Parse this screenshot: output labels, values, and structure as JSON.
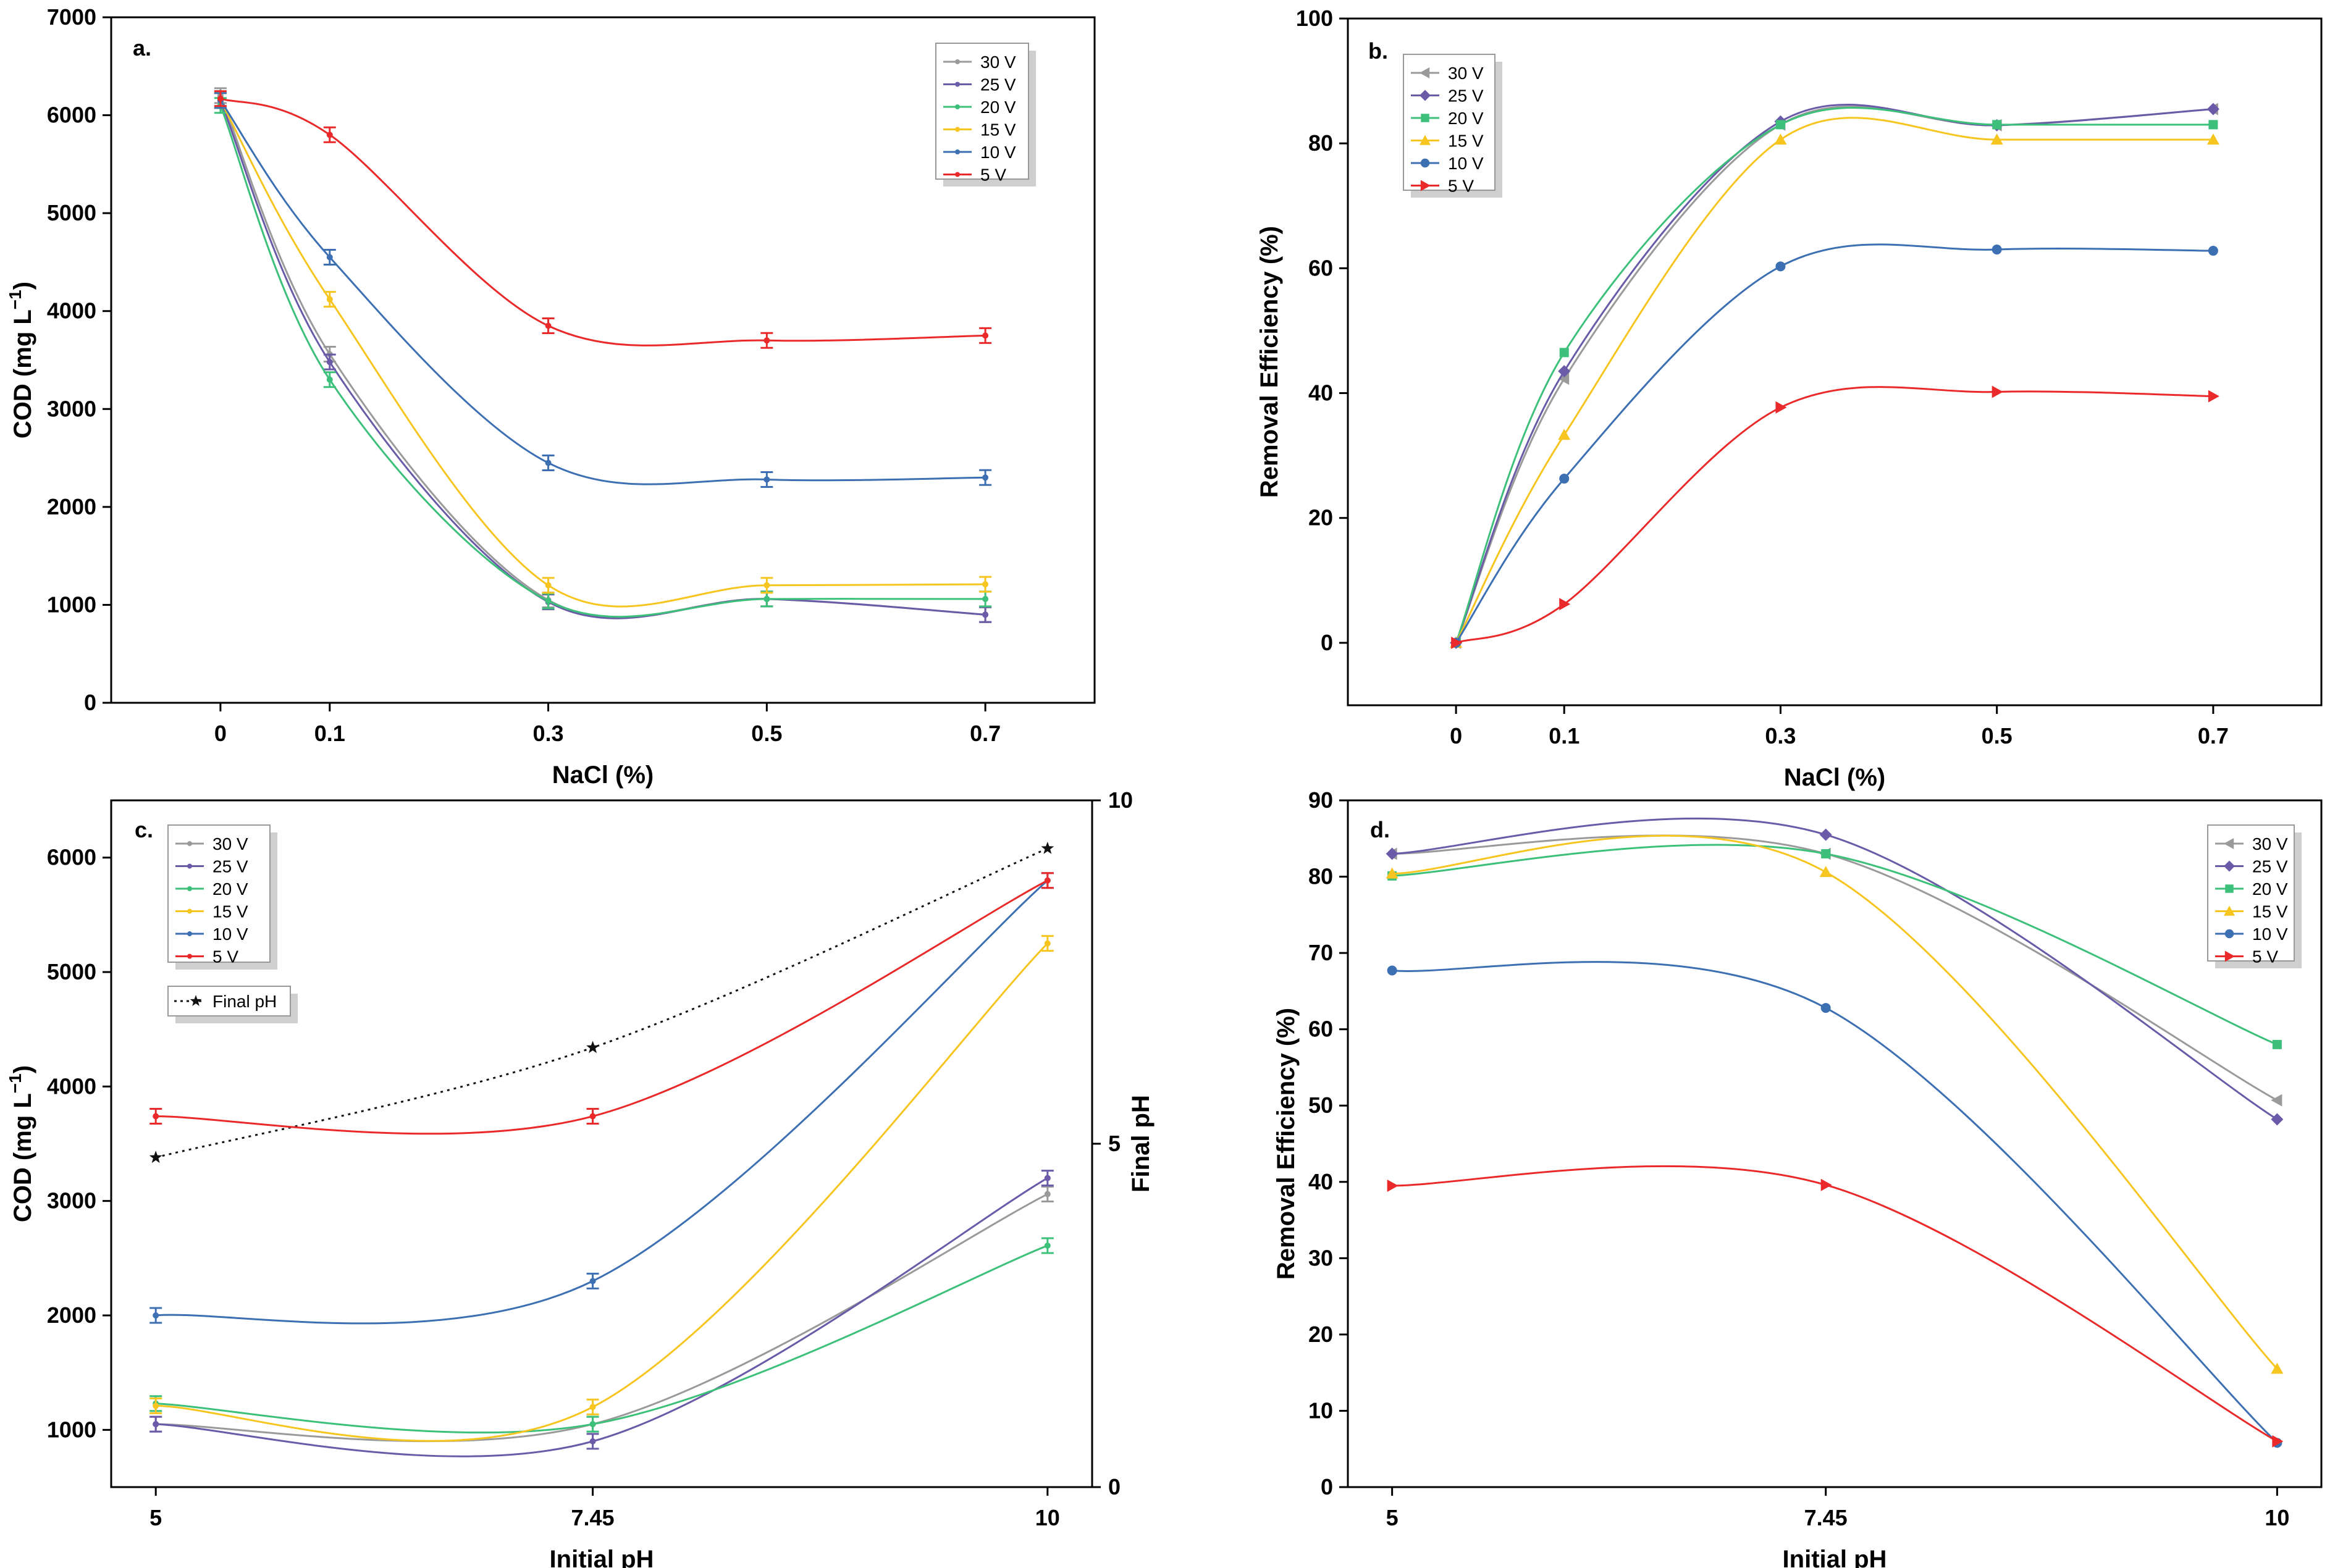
{
  "colors": {
    "30 V": "#9a9a9a",
    "25 V": "#6a5aa8",
    "20 V": "#3cc07a",
    "15 V": "#f6c51f",
    "10 V": "#3d6fb3",
    "5 V": "#ea2a2a",
    "Final pH": "#111111"
  },
  "chart_data": [
    {
      "id": "a",
      "type": "line",
      "panel_label": "a.",
      "xlabel": "NaCl (%)",
      "ylabel": "COD (mg L",
      "ylabel_sup": "−1",
      "ylabel_end": ")",
      "x": [
        0,
        0.1,
        0.3,
        0.5,
        0.7
      ],
      "xticks": [
        "0",
        "0.1",
        "0.3",
        "0.5",
        "0.7"
      ],
      "xlim": [
        -0.1,
        0.8
      ],
      "ylim": [
        0,
        7000
      ],
      "yticks": [
        "0",
        "1000",
        "2000",
        "3000",
        "4000",
        "5000",
        "6000",
        "7000"
      ],
      "legend_position": "top-right",
      "series": [
        {
          "name": "30 V",
          "values": [
            6200,
            3560,
            1050,
            1060,
            900
          ]
        },
        {
          "name": "25 V",
          "values": [
            6150,
            3480,
            1030,
            1060,
            900
          ]
        },
        {
          "name": "20 V",
          "values": [
            6100,
            3300,
            1040,
            1060,
            1060
          ]
        },
        {
          "name": "15 V",
          "values": [
            6150,
            4120,
            1200,
            1200,
            1210
          ]
        },
        {
          "name": "10 V",
          "values": [
            6150,
            4550,
            2450,
            2280,
            2300
          ]
        },
        {
          "name": "5 V",
          "values": [
            6170,
            5800,
            3850,
            3700,
            3750
          ]
        }
      ]
    },
    {
      "id": "b",
      "type": "line",
      "panel_label": "b.",
      "xlabel": "NaCl (%)",
      "ylabel": "Removal Efficiency (%)",
      "x": [
        0,
        0.1,
        0.3,
        0.5,
        0.7
      ],
      "xticks": [
        "0",
        "0.1",
        "0.3",
        "0.5",
        "0.7"
      ],
      "xlim": [
        -0.1,
        0.8
      ],
      "ylim": [
        -10,
        100
      ],
      "yticks": [
        "0",
        "20",
        "40",
        "60",
        "80",
        "100"
      ],
      "legend_position": "top-left",
      "series": [
        {
          "name": "30 V",
          "values": [
            0,
            42.3,
            83,
            82.9,
            85.5
          ]
        },
        {
          "name": "25 V",
          "values": [
            0,
            43.5,
            83.5,
            82.9,
            85.5
          ]
        },
        {
          "name": "20 V",
          "values": [
            0,
            46.5,
            83,
            83,
            83
          ]
        },
        {
          "name": "15 V",
          "values": [
            0,
            33.3,
            80.6,
            80.6,
            80.6
          ]
        },
        {
          "name": "10 V",
          "values": [
            0,
            26.3,
            60.3,
            63,
            62.8
          ]
        },
        {
          "name": "5 V",
          "values": [
            0,
            6.2,
            37.7,
            40.2,
            39.5
          ]
        }
      ]
    },
    {
      "id": "c",
      "type": "line",
      "panel_label": "c.",
      "xlabel": "Initial pH",
      "ylabel": "COD (mg L",
      "ylabel_sup": "−1",
      "ylabel_end": ")",
      "y2label": "Final pH",
      "x": [
        5,
        7.45,
        10
      ],
      "xticks": [
        "5",
        "7.45",
        "10"
      ],
      "xlim": [
        4.75,
        10.25
      ],
      "ylim": [
        500,
        6500
      ],
      "yticks": [
        "1000",
        "2000",
        "3000",
        "4000",
        "5000",
        "6000"
      ],
      "y2lim": [
        0,
        10
      ],
      "y2ticks": [
        "0",
        "5",
        "10"
      ],
      "legend_position": "top-left",
      "series": [
        {
          "name": "30 V",
          "values": [
            1050,
            1050,
            3060
          ]
        },
        {
          "name": "25 V",
          "values": [
            1050,
            900,
            3200
          ]
        },
        {
          "name": "20 V",
          "values": [
            1230,
            1050,
            2610
          ]
        },
        {
          "name": "15 V",
          "values": [
            1210,
            1200,
            5250
          ]
        },
        {
          "name": "10 V",
          "values": [
            2000,
            2300,
            5800
          ]
        },
        {
          "name": "5 V",
          "values": [
            3740,
            3740,
            5800
          ]
        }
      ],
      "secondary_series": {
        "name": "Final pH",
        "axis": "right",
        "values": [
          4.8,
          6.4,
          9.3
        ]
      }
    },
    {
      "id": "d",
      "type": "line",
      "panel_label": "d.",
      "xlabel": "Initial pH",
      "ylabel": "Removal Efficiency (%)",
      "x": [
        5,
        7.45,
        10
      ],
      "xticks": [
        "5",
        "7.45",
        "10"
      ],
      "xlim": [
        4.75,
        10.25
      ],
      "ylim": [
        0,
        90
      ],
      "yticks": [
        "0",
        "10",
        "20",
        "30",
        "40",
        "50",
        "60",
        "70",
        "80",
        "90"
      ],
      "legend_position": "top-right",
      "series": [
        {
          "name": "30 V",
          "values": [
            83,
            83,
            50.7
          ]
        },
        {
          "name": "25 V",
          "values": [
            83,
            85.5,
            48.2
          ]
        },
        {
          "name": "20 V",
          "values": [
            80.1,
            83,
            58
          ]
        },
        {
          "name": "15 V",
          "values": [
            80.4,
            80.6,
            15.5
          ]
        },
        {
          "name": "10 V",
          "values": [
            67.7,
            62.8,
            5.8
          ]
        },
        {
          "name": "5 V",
          "values": [
            39.5,
            39.6,
            6
          ]
        }
      ]
    }
  ]
}
